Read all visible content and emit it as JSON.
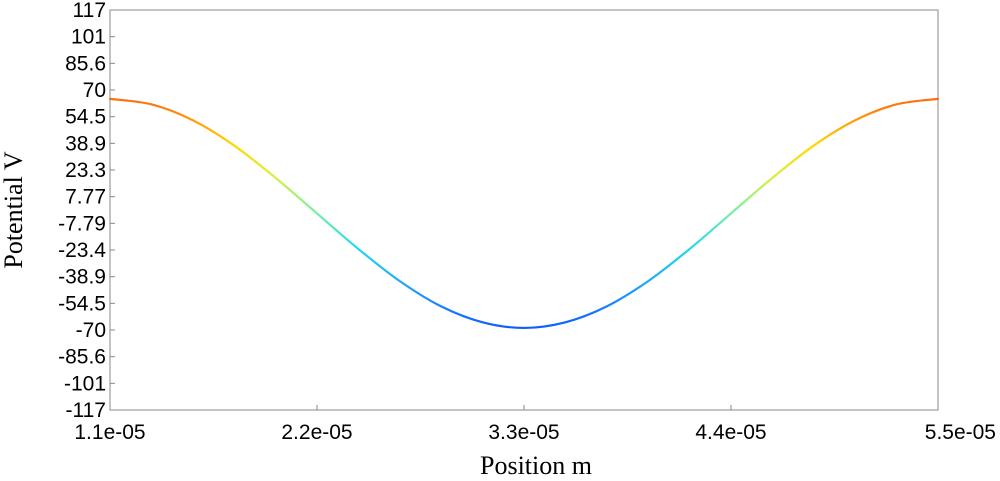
{
  "chart_data": {
    "type": "line",
    "title": "",
    "xlabel": "Position m",
    "ylabel": "Potential V",
    "xlim": [
      1.1e-05,
      5.5e-05
    ],
    "ylim": [
      -117,
      117
    ],
    "x_ticks": [
      1.1e-05,
      2.2e-05,
      3.3e-05,
      4.4e-05,
      5.5e-05
    ],
    "x_tick_labels": [
      "1.1e-05",
      "2.2e-05",
      "3.3e-05",
      "4.4e-05",
      "5.5e-05"
    ],
    "y_ticks": [
      117,
      101,
      85.6,
      70,
      54.5,
      38.9,
      23.3,
      7.77,
      -7.79,
      -23.4,
      -38.9,
      -54.5,
      -70,
      -85.6,
      -101,
      -117
    ],
    "y_tick_labels": [
      "117",
      "101",
      "85.6",
      "70",
      "54.5",
      "38.9",
      "23.3",
      "7.77",
      "-7.79",
      "-23.4",
      "-38.9",
      "-54.5",
      "-70",
      "-85.6",
      "-101",
      "-117"
    ],
    "grid": false,
    "colormap": "jet",
    "series": [
      {
        "x": [
          1.1e-05,
          1.32e-05,
          1.54e-05,
          1.76e-05,
          1.98e-05,
          2.2e-05,
          2.42e-05,
          2.64e-05,
          2.86e-05,
          3.08e-05,
          3.3e-05,
          3.52e-05,
          3.74e-05,
          3.96e-05,
          4.18e-05,
          4.4e-05,
          4.62e-05,
          4.84e-05,
          5.06e-05,
          5.28e-05,
          5.5e-05
        ],
        "y": [
          65,
          61.8,
          52.5,
          37.7,
          18.8,
          -2.0,
          -22.8,
          -41.6,
          -56.4,
          -65.7,
          -69,
          -65.7,
          -56.4,
          -41.6,
          -22.8,
          -2.0,
          18.8,
          37.7,
          52.5,
          61.8,
          65
        ]
      }
    ]
  }
}
